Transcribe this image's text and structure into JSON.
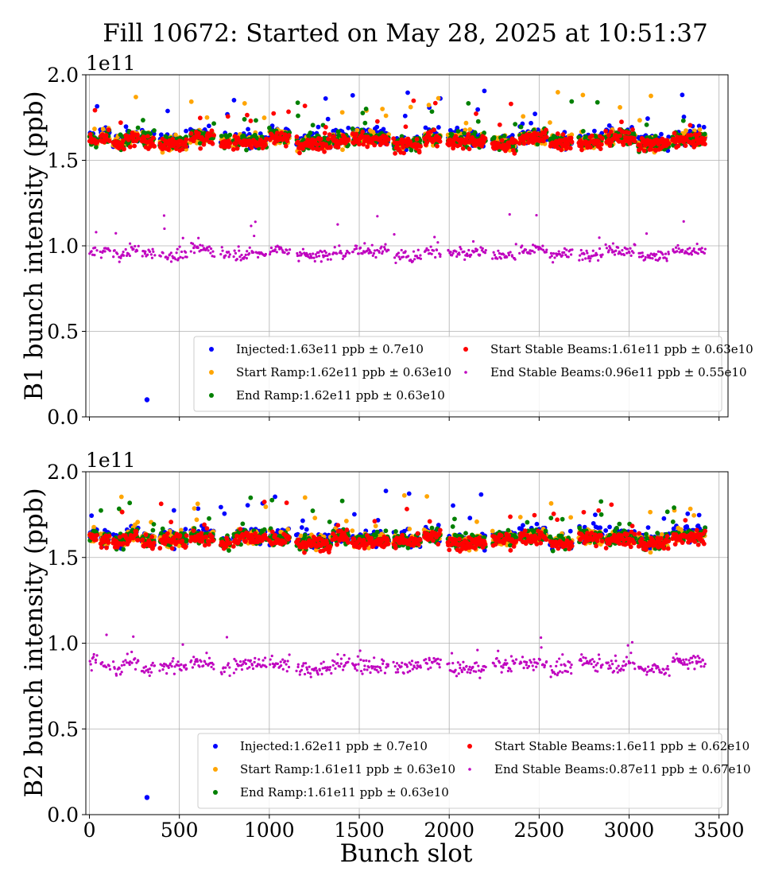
{
  "figure": {
    "title": "Fill 10672: Started on May 28, 2025 at 10:51:37",
    "xlabel": "Bunch slot"
  },
  "colors": {
    "Injected": "#0000ff",
    "Start Ramp": "#ffa500",
    "End Ramp": "#008000",
    "Start Stable Beams": "#ff0000",
    "End Stable Beams": "#bf00bf"
  },
  "chart_data": [
    {
      "type": "scatter",
      "ylabel": "B1 bunch intensity (ppb)",
      "y_multiplier": "1e11",
      "xlim": [
        -20,
        3550
      ],
      "ylim": [
        0,
        2.0
      ],
      "x_ticks": [
        0,
        500,
        1000,
        1500,
        2000,
        2500,
        3000,
        3500
      ],
      "y_ticks": [
        0.0,
        0.5,
        1.0,
        1.5,
        2.0
      ],
      "y_tick_labels": [
        "0.0",
        "0.5",
        "1.0",
        "1.5",
        "2.0"
      ],
      "grid": true,
      "legend_position": "lower-right",
      "x_ticklabels_visible": false,
      "bunch_trains": [
        [
          0,
          40
        ],
        [
          60,
          110
        ],
        [
          130,
          190
        ],
        [
          200,
          270
        ],
        [
          290,
          360
        ],
        [
          390,
          540
        ],
        [
          560,
          690
        ],
        [
          730,
          780
        ],
        [
          800,
          980
        ],
        [
          1000,
          1110
        ],
        [
          1150,
          1340
        ],
        [
          1350,
          1440
        ],
        [
          1460,
          1660
        ],
        [
          1690,
          1840
        ],
        [
          1860,
          1950
        ],
        [
          1990,
          2200
        ],
        [
          2240,
          2370
        ],
        [
          2390,
          2540
        ],
        [
          2560,
          2680
        ],
        [
          2720,
          2850
        ],
        [
          2870,
          3030
        ],
        [
          3050,
          3220
        ],
        [
          3240,
          3420
        ]
      ],
      "series": [
        {
          "name": "Injected",
          "legend": "Injected:1.63e11 ppb ± 0.7e10",
          "mean": 1.63,
          "spread": 0.07,
          "peak": 1.92,
          "low": 1.48,
          "outliers": [
            [
              320,
              0.1
            ]
          ]
        },
        {
          "name": "Start Ramp",
          "legend": "Start Ramp:1.62e11 ppb ± 0.63e10",
          "mean": 1.62,
          "spread": 0.063,
          "peak": 1.9,
          "low": 1.46
        },
        {
          "name": "End Ramp",
          "legend": "End Ramp:1.62e11 ppb ± 0.63e10",
          "mean": 1.62,
          "spread": 0.063,
          "peak": 1.86,
          "low": 1.45
        },
        {
          "name": "Start Stable Beams",
          "legend": "Start Stable Beams:1.61e11 ppb ± 0.63e10",
          "mean": 1.61,
          "spread": 0.063,
          "peak": 1.85,
          "low": 1.42
        },
        {
          "name": "End Stable Beams",
          "legend": "End Stable Beams:0.96e11 ppb ± 0.55e10",
          "mean": 0.96,
          "spread": 0.055,
          "peak": 1.2,
          "low": 0.85
        }
      ]
    },
    {
      "type": "scatter",
      "ylabel": "B2 bunch intensity (ppb)",
      "y_multiplier": "1e11",
      "xlim": [
        -20,
        3550
      ],
      "ylim": [
        0,
        2.0
      ],
      "x_ticks": [
        0,
        500,
        1000,
        1500,
        2000,
        2500,
        3000,
        3500
      ],
      "x_tick_labels": [
        "0",
        "500",
        "1000",
        "1500",
        "2000",
        "2500",
        "3000",
        "3500"
      ],
      "y_ticks": [
        0.0,
        0.5,
        1.0,
        1.5,
        2.0
      ],
      "y_tick_labels": [
        "0.0",
        "0.5",
        "1.0",
        "1.5",
        "2.0"
      ],
      "grid": true,
      "legend_position": "lower-right",
      "x_ticklabels_visible": true,
      "bunch_trains": [
        [
          0,
          40
        ],
        [
          60,
          110
        ],
        [
          130,
          190
        ],
        [
          200,
          270
        ],
        [
          290,
          360
        ],
        [
          390,
          540
        ],
        [
          560,
          690
        ],
        [
          730,
          780
        ],
        [
          800,
          980
        ],
        [
          1000,
          1110
        ],
        [
          1150,
          1340
        ],
        [
          1350,
          1440
        ],
        [
          1460,
          1660
        ],
        [
          1690,
          1840
        ],
        [
          1860,
          1950
        ],
        [
          1990,
          2200
        ],
        [
          2240,
          2370
        ],
        [
          2390,
          2540
        ],
        [
          2560,
          2680
        ],
        [
          2720,
          2850
        ],
        [
          2870,
          3030
        ],
        [
          3050,
          3220
        ],
        [
          3240,
          3420
        ]
      ],
      "series": [
        {
          "name": "Injected",
          "legend": "Injected:1.62e11 ppb ± 0.7e10",
          "mean": 1.62,
          "spread": 0.07,
          "peak": 1.89,
          "low": 1.42,
          "outliers": [
            [
              320,
              0.1
            ]
          ]
        },
        {
          "name": "Start Ramp",
          "legend": "Start Ramp:1.61e11 ppb ± 0.63e10",
          "mean": 1.61,
          "spread": 0.063,
          "peak": 1.88,
          "low": 1.42
        },
        {
          "name": "End Ramp",
          "legend": "End Ramp:1.61e11 ppb ± 0.63e10",
          "mean": 1.61,
          "spread": 0.063,
          "peak": 1.85,
          "low": 1.41
        },
        {
          "name": "Start Stable Beams",
          "legend": "Start Stable Beams:1.6e11 ppb ± 0.62e10",
          "mean": 1.6,
          "spread": 0.062,
          "peak": 1.84,
          "low": 1.4
        },
        {
          "name": "End Stable Beams",
          "legend": "End Stable Beams:0.87e11 ppb ± 0.67e10",
          "mean": 0.87,
          "spread": 0.067,
          "peak": 1.05,
          "low": 0.67
        }
      ]
    }
  ]
}
